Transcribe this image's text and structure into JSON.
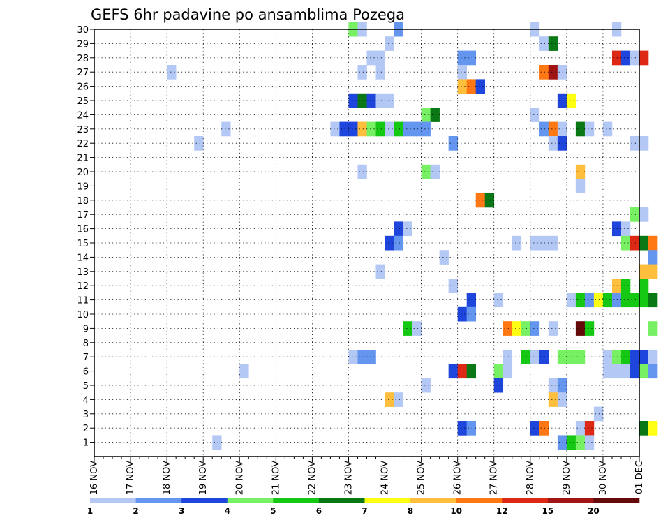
{
  "chart_data": {
    "type": "heatmap",
    "title": "GEFS 6hr padavine po ansamblima Pozega",
    "y_ticks": [
      "1",
      "2",
      "3",
      "4",
      "5",
      "6",
      "7",
      "8",
      "9",
      "10",
      "11",
      "12",
      "13",
      "14",
      "15",
      "16",
      "17",
      "18",
      "19",
      "20",
      "21",
      "22",
      "23",
      "24",
      "25",
      "26",
      "27",
      "28",
      "29",
      "30"
    ],
    "x_ticks": [
      "16 NOV",
      "17 NOV",
      "18 NOV",
      "19 NOV",
      "20 NOV",
      "21 NOV",
      "22 NOV",
      "23 NOV",
      "24 NOV",
      "25 NOV",
      "26 NOV",
      "27 NOV",
      "28 NOV",
      "29 NOV",
      "30 NOV",
      "01 DEC"
    ],
    "x_range": [
      "16 NOV 00Z",
      "01 DEC 00Z"
    ],
    "y_range": [
      0,
      30
    ],
    "grid": true,
    "time_step_hours": 6,
    "color_scale": {
      "colors": [
        "#b4c8f5",
        "#6496f0",
        "#1e46dc",
        "#78f064",
        "#14c814",
        "#0a7814",
        "#ffff14",
        "#ffbe3c",
        "#ff7814",
        "#dc2814",
        "#a01414",
        "#640a0a"
      ],
      "labels": [
        "1",
        "2",
        "3",
        "4",
        "5",
        "6",
        "7",
        "8",
        "10",
        "12",
        "15",
        "20"
      ]
    },
    "cells": [
      {
        "member": 30,
        "step": 28,
        "level": 4
      },
      {
        "member": 30,
        "step": 29,
        "level": 1
      },
      {
        "member": 30,
        "step": 33,
        "level": 2
      },
      {
        "member": 30,
        "step": 48,
        "level": 1
      },
      {
        "member": 30,
        "step": 57,
        "level": 1
      },
      {
        "member": 29,
        "step": 32,
        "level": 1
      },
      {
        "member": 29,
        "step": 49,
        "level": 1
      },
      {
        "member": 29,
        "step": 50,
        "level": 6
      },
      {
        "member": 28,
        "step": 30,
        "level": 1
      },
      {
        "member": 28,
        "step": 31,
        "level": 1
      },
      {
        "member": 28,
        "step": 40,
        "level": 2
      },
      {
        "member": 28,
        "step": 41,
        "level": 2
      },
      {
        "member": 28,
        "step": 57,
        "level": 10
      },
      {
        "member": 28,
        "step": 58,
        "level": 3
      },
      {
        "member": 28,
        "step": 59,
        "level": 1
      },
      {
        "member": 28,
        "step": 60,
        "level": 10
      },
      {
        "member": 27,
        "step": 8,
        "level": 1
      },
      {
        "member": 27,
        "step": 29,
        "level": 1
      },
      {
        "member": 27,
        "step": 31,
        "level": 1
      },
      {
        "member": 27,
        "step": 40,
        "level": 1
      },
      {
        "member": 27,
        "step": 49,
        "level": 9
      },
      {
        "member": 27,
        "step": 50,
        "level": 11
      },
      {
        "member": 27,
        "step": 51,
        "level": 1
      },
      {
        "member": 26,
        "step": 40,
        "level": 8
      },
      {
        "member": 26,
        "step": 41,
        "level": 9
      },
      {
        "member": 26,
        "step": 42,
        "level": 3
      },
      {
        "member": 25,
        "step": 28,
        "level": 3
      },
      {
        "member": 25,
        "step": 29,
        "level": 6
      },
      {
        "member": 25,
        "step": 30,
        "level": 3
      },
      {
        "member": 25,
        "step": 31,
        "level": 1
      },
      {
        "member": 25,
        "step": 32,
        "level": 1
      },
      {
        "member": 25,
        "step": 51,
        "level": 3
      },
      {
        "member": 25,
        "step": 52,
        "level": 7
      },
      {
        "member": 24,
        "step": 36,
        "level": 4
      },
      {
        "member": 24,
        "step": 37,
        "level": 6
      },
      {
        "member": 24,
        "step": 48,
        "level": 1
      },
      {
        "member": 23,
        "step": 14,
        "level": 1
      },
      {
        "member": 23,
        "step": 26,
        "level": 1
      },
      {
        "member": 23,
        "step": 27,
        "level": 3
      },
      {
        "member": 23,
        "step": 28,
        "level": 3
      },
      {
        "member": 23,
        "step": 29,
        "level": 8
      },
      {
        "member": 23,
        "step": 30,
        "level": 4
      },
      {
        "member": 23,
        "step": 31,
        "level": 5
      },
      {
        "member": 23,
        "step": 32,
        "level": 1
      },
      {
        "member": 23,
        "step": 33,
        "level": 5
      },
      {
        "member": 23,
        "step": 34,
        "level": 2
      },
      {
        "member": 23,
        "step": 35,
        "level": 2
      },
      {
        "member": 23,
        "step": 36,
        "level": 2
      },
      {
        "member": 23,
        "step": 49,
        "level": 2
      },
      {
        "member": 23,
        "step": 50,
        "level": 9
      },
      {
        "member": 23,
        "step": 51,
        "level": 1
      },
      {
        "member": 23,
        "step": 53,
        "level": 6
      },
      {
        "member": 23,
        "step": 54,
        "level": 1
      },
      {
        "member": 23,
        "step": 56,
        "level": 1
      },
      {
        "member": 22,
        "step": 11,
        "level": 1
      },
      {
        "member": 22,
        "step": 39,
        "level": 2
      },
      {
        "member": 22,
        "step": 50,
        "level": 1
      },
      {
        "member": 22,
        "step": 51,
        "level": 3
      },
      {
        "member": 22,
        "step": 59,
        "level": 1
      },
      {
        "member": 22,
        "step": 60,
        "level": 1
      },
      {
        "member": 20,
        "step": 29,
        "level": 1
      },
      {
        "member": 20,
        "step": 36,
        "level": 4
      },
      {
        "member": 20,
        "step": 37,
        "level": 1
      },
      {
        "member": 20,
        "step": 53,
        "level": 8
      },
      {
        "member": 19,
        "step": 53,
        "level": 1
      },
      {
        "member": 18,
        "step": 42,
        "level": 9
      },
      {
        "member": 18,
        "step": 43,
        "level": 6
      },
      {
        "member": 17,
        "step": 59,
        "level": 4
      },
      {
        "member": 17,
        "step": 60,
        "level": 1
      },
      {
        "member": 16,
        "step": 33,
        "level": 3
      },
      {
        "member": 16,
        "step": 34,
        "level": 1
      },
      {
        "member": 16,
        "step": 57,
        "level": 3
      },
      {
        "member": 16,
        "step": 58,
        "level": 1
      },
      {
        "member": 15,
        "step": 32,
        "level": 3
      },
      {
        "member": 15,
        "step": 33,
        "level": 2
      },
      {
        "member": 15,
        "step": 46,
        "level": 1
      },
      {
        "member": 15,
        "step": 48,
        "level": 1
      },
      {
        "member": 15,
        "step": 49,
        "level": 1
      },
      {
        "member": 15,
        "step": 50,
        "level": 1
      },
      {
        "member": 15,
        "step": 58,
        "level": 4
      },
      {
        "member": 15,
        "step": 59,
        "level": 10
      },
      {
        "member": 15,
        "step": 60,
        "level": 6
      },
      {
        "member": 15,
        "step": 61,
        "level": 9
      },
      {
        "member": 14,
        "step": 38,
        "level": 1
      },
      {
        "member": 14,
        "step": 61,
        "level": 2
      },
      {
        "member": 13,
        "step": 31,
        "level": 1
      },
      {
        "member": 13,
        "step": 60,
        "level": 8
      },
      {
        "member": 13,
        "step": 61,
        "level": 8
      },
      {
        "member": 12,
        "step": 39,
        "level": 1
      },
      {
        "member": 12,
        "step": 57,
        "level": 8
      },
      {
        "member": 12,
        "step": 58,
        "level": 5
      },
      {
        "member": 12,
        "step": 60,
        "level": 5
      },
      {
        "member": 11,
        "step": 41,
        "level": 3
      },
      {
        "member": 11,
        "step": 44,
        "level": 1
      },
      {
        "member": 11,
        "step": 52,
        "level": 1
      },
      {
        "member": 11,
        "step": 53,
        "level": 5
      },
      {
        "member": 11,
        "step": 54,
        "level": 2
      },
      {
        "member": 11,
        "step": 55,
        "level": 7
      },
      {
        "member": 11,
        "step": 56,
        "level": 5
      },
      {
        "member": 11,
        "step": 57,
        "level": 2
      },
      {
        "member": 11,
        "step": 58,
        "level": 5
      },
      {
        "member": 11,
        "step": 59,
        "level": 5
      },
      {
        "member": 11,
        "step": 60,
        "level": 5
      },
      {
        "member": 11,
        "step": 61,
        "level": 6
      },
      {
        "member": 10,
        "step": 40,
        "level": 3
      },
      {
        "member": 10,
        "step": 41,
        "level": 2
      },
      {
        "member": 9,
        "step": 34,
        "level": 5
      },
      {
        "member": 9,
        "step": 35,
        "level": 1
      },
      {
        "member": 9,
        "step": 45,
        "level": 9
      },
      {
        "member": 9,
        "step": 46,
        "level": 7
      },
      {
        "member": 9,
        "step": 47,
        "level": 4
      },
      {
        "member": 9,
        "step": 48,
        "level": 2
      },
      {
        "member": 9,
        "step": 50,
        "level": 1
      },
      {
        "member": 9,
        "step": 53,
        "level": 12
      },
      {
        "member": 9,
        "step": 54,
        "level": 5
      },
      {
        "member": 9,
        "step": 61,
        "level": 4
      },
      {
        "member": 7,
        "step": 28,
        "level": 1
      },
      {
        "member": 7,
        "step": 29,
        "level": 2
      },
      {
        "member": 7,
        "step": 30,
        "level": 2
      },
      {
        "member": 7,
        "step": 45,
        "level": 1
      },
      {
        "member": 7,
        "step": 47,
        "level": 5
      },
      {
        "member": 7,
        "step": 48,
        "level": 1
      },
      {
        "member": 7,
        "step": 49,
        "level": 3
      },
      {
        "member": 7,
        "step": 51,
        "level": 4
      },
      {
        "member": 7,
        "step": 52,
        "level": 4
      },
      {
        "member": 7,
        "step": 53,
        "level": 4
      },
      {
        "member": 7,
        "step": 56,
        "level": 1
      },
      {
        "member": 7,
        "step": 57,
        "level": 4
      },
      {
        "member": 7,
        "step": 58,
        "level": 5
      },
      {
        "member": 7,
        "step": 59,
        "level": 3
      },
      {
        "member": 7,
        "step": 60,
        "level": 3
      },
      {
        "member": 7,
        "step": 61,
        "level": 1
      },
      {
        "member": 6,
        "step": 16,
        "level": 1
      },
      {
        "member": 6,
        "step": 39,
        "level": 3
      },
      {
        "member": 6,
        "step": 40,
        "level": 10
      },
      {
        "member": 6,
        "step": 41,
        "level": 6
      },
      {
        "member": 6,
        "step": 44,
        "level": 4
      },
      {
        "member": 6,
        "step": 45,
        "level": 1
      },
      {
        "member": 6,
        "step": 56,
        "level": 1
      },
      {
        "member": 6,
        "step": 57,
        "level": 1
      },
      {
        "member": 6,
        "step": 58,
        "level": 1
      },
      {
        "member": 6,
        "step": 59,
        "level": 3
      },
      {
        "member": 6,
        "step": 60,
        "level": 4
      },
      {
        "member": 6,
        "step": 61,
        "level": 2
      },
      {
        "member": 5,
        "step": 36,
        "level": 1
      },
      {
        "member": 5,
        "step": 44,
        "level": 3
      },
      {
        "member": 5,
        "step": 50,
        "level": 1
      },
      {
        "member": 5,
        "step": 51,
        "level": 2
      },
      {
        "member": 4,
        "step": 32,
        "level": 8
      },
      {
        "member": 4,
        "step": 33,
        "level": 1
      },
      {
        "member": 4,
        "step": 50,
        "level": 8
      },
      {
        "member": 4,
        "step": 51,
        "level": 1
      },
      {
        "member": 3,
        "step": 55,
        "level": 1
      },
      {
        "member": 2,
        "step": 40,
        "level": 3
      },
      {
        "member": 2,
        "step": 41,
        "level": 2
      },
      {
        "member": 2,
        "step": 48,
        "level": 3
      },
      {
        "member": 2,
        "step": 49,
        "level": 9
      },
      {
        "member": 2,
        "step": 53,
        "level": 1
      },
      {
        "member": 2,
        "step": 54,
        "level": 10
      },
      {
        "member": 2,
        "step": 60,
        "level": 6
      },
      {
        "member": 2,
        "step": 61,
        "level": 7
      },
      {
        "member": 1,
        "step": 13,
        "level": 1
      },
      {
        "member": 1,
        "step": 51,
        "level": 2
      },
      {
        "member": 1,
        "step": 52,
        "level": 5
      },
      {
        "member": 1,
        "step": 53,
        "level": 4
      },
      {
        "member": 1,
        "step": 54,
        "level": 1
      }
    ]
  }
}
